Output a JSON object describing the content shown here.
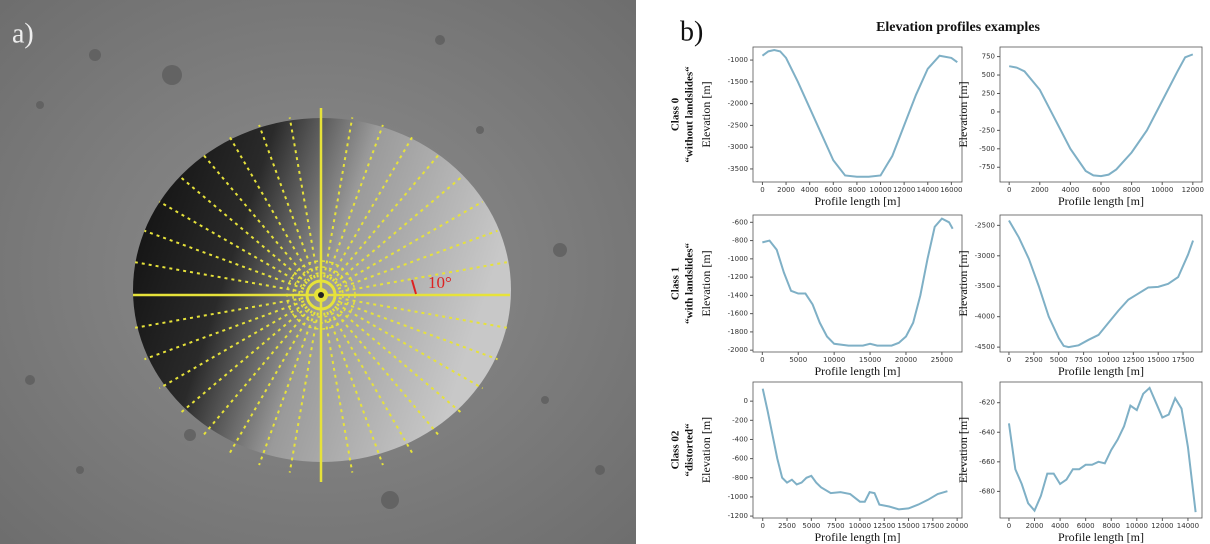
{
  "figure": {
    "panel_a": "a)",
    "panel_b": "b)",
    "title": "Elevation profiles examples",
    "angle": "10°",
    "rows": [
      {
        "class": "Class 0",
        "desc": "“without landslides“"
      },
      {
        "class": "Class 1",
        "desc": "“with landslides“"
      },
      {
        "class": "Class 02",
        "desc": "“distorted“"
      }
    ]
  },
  "chart_data": [
    {
      "type": "line",
      "xlabel": "Profile length [m]",
      "ylabel": "Elevation [m]",
      "color": "#7fb0c6",
      "x": [
        0,
        500,
        1000,
        1500,
        2000,
        3000,
        4000,
        5000,
        6000,
        7000,
        8000,
        9000,
        10000,
        11000,
        12000,
        13000,
        14000,
        15000,
        16000,
        16500
      ],
      "values": [
        -900,
        -800,
        -770,
        -800,
        -950,
        -1500,
        -2100,
        -2700,
        -3300,
        -3650,
        -3680,
        -3680,
        -3650,
        -3200,
        -2500,
        -1800,
        -1200,
        -900,
        -950,
        -1050
      ],
      "xlim": [
        -800,
        16900
      ],
      "ylim": [
        -3800,
        -700
      ],
      "xticks": [
        0,
        2000,
        4000,
        6000,
        8000,
        10000,
        12000,
        14000,
        16000
      ],
      "yticks": [
        -1000,
        -1500,
        -2000,
        -2500,
        -3000,
        -3500
      ]
    },
    {
      "type": "line",
      "xlabel": "Profile length [m]",
      "ylabel": "Elevation [m]",
      "color": "#7fb0c6",
      "x": [
        0,
        500,
        1000,
        2000,
        3000,
        4000,
        5000,
        5500,
        6000,
        6500,
        7000,
        8000,
        9000,
        10000,
        11000,
        11500,
        12000
      ],
      "values": [
        620,
        600,
        550,
        300,
        -100,
        -500,
        -800,
        -860,
        -870,
        -850,
        -780,
        -550,
        -250,
        150,
        550,
        740,
        780
      ],
      "xlim": [
        -600,
        12600
      ],
      "ylim": [
        -950,
        880
      ],
      "xticks": [
        0,
        2000,
        4000,
        6000,
        8000,
        10000,
        12000
      ],
      "yticks": [
        750,
        500,
        250,
        0,
        -250,
        -500,
        -750
      ]
    },
    {
      "type": "line",
      "xlabel": "Profile length [m]",
      "ylabel": "Elevation [m]",
      "color": "#7fb0c6",
      "x": [
        0,
        1000,
        2000,
        3000,
        4000,
        5000,
        6000,
        7000,
        8000,
        9000,
        10000,
        12000,
        14000,
        15000,
        16000,
        18000,
        19000,
        20000,
        21000,
        22000,
        23000,
        24000,
        25000,
        26000,
        26500
      ],
      "values": [
        -820,
        -800,
        -900,
        -1150,
        -1350,
        -1380,
        -1380,
        -1500,
        -1700,
        -1850,
        -1930,
        -1950,
        -1950,
        -1930,
        -1950,
        -1950,
        -1920,
        -1850,
        -1700,
        -1400,
        -1000,
        -650,
        -560,
        -600,
        -670
      ],
      "xlim": [
        -1300,
        27800
      ],
      "ylim": [
        -2020,
        -520
      ],
      "xticks": [
        0,
        5000,
        10000,
        15000,
        20000,
        25000
      ],
      "yticks": [
        -600,
        -800,
        -1000,
        -1200,
        -1400,
        -1600,
        -1800,
        -2000
      ]
    },
    {
      "type": "line",
      "xlabel": "Profile length [m]",
      "ylabel": "Elevation [m]",
      "color": "#7fb0c6",
      "x": [
        0,
        1000,
        2000,
        3000,
        4000,
        5000,
        5500,
        6000,
        7000,
        8000,
        9000,
        10000,
        11000,
        12000,
        13000,
        14000,
        15000,
        16000,
        17000,
        18000,
        18500
      ],
      "values": [
        -2420,
        -2700,
        -3050,
        -3500,
        -4000,
        -4350,
        -4480,
        -4500,
        -4470,
        -4380,
        -4300,
        -4100,
        -3900,
        -3720,
        -3620,
        -3520,
        -3510,
        -3460,
        -3350,
        -2980,
        -2750
      ],
      "xlim": [
        -900,
        19400
      ],
      "ylim": [
        -4580,
        -2330
      ],
      "xticks": [
        0,
        2500,
        5000,
        7500,
        10000,
        12500,
        15000,
        17500
      ],
      "yticks": [
        -2500,
        -3000,
        -3500,
        -4000,
        -4500
      ]
    },
    {
      "type": "line",
      "xlabel": "Profile length [m]",
      "ylabel": "Elevation [m]",
      "color": "#7fb0c6",
      "x": [
        0,
        500,
        1000,
        1500,
        2000,
        2500,
        3000,
        3500,
        4000,
        4500,
        5000,
        5500,
        6000,
        7000,
        8000,
        9000,
        10000,
        10500,
        11000,
        11500,
        12000,
        13000,
        14000,
        15000,
        16000,
        17000,
        18000,
        19000
      ],
      "values": [
        130,
        -100,
        -350,
        -600,
        -800,
        -850,
        -820,
        -870,
        -850,
        -800,
        -780,
        -850,
        -900,
        -960,
        -950,
        -970,
        -1050,
        -1050,
        -950,
        -960,
        -1080,
        -1100,
        -1130,
        -1120,
        -1080,
        -1030,
        -970,
        -940
      ],
      "xlim": [
        -1000,
        20500
      ],
      "ylim": [
        -1220,
        200
      ],
      "xticks": [
        0,
        2500,
        5000,
        7500,
        10000,
        12500,
        15000,
        17500,
        20000
      ],
      "yticks": [
        0,
        -200,
        -400,
        -600,
        -800,
        -1000,
        -1200
      ]
    },
    {
      "type": "line",
      "xlabel": "Profile length [m]",
      "ylabel": "Elevation [m]",
      "color": "#7fb0c6",
      "x": [
        0,
        500,
        1000,
        1500,
        2000,
        2500,
        3000,
        3500,
        4000,
        4500,
        5000,
        5500,
        6000,
        6500,
        7000,
        7500,
        8000,
        8500,
        9000,
        9500,
        10000,
        10500,
        11000,
        11500,
        12000,
        12500,
        13000,
        13500,
        14000,
        14600
      ],
      "values": [
        -634,
        -665,
        -675,
        -688,
        -693,
        -683,
        -668,
        -668,
        -675,
        -672,
        -665,
        -665,
        -662,
        -662,
        -660,
        -661,
        -652,
        -645,
        -636,
        -622,
        -625,
        -614,
        -610,
        -620,
        -630,
        -628,
        -617,
        -624,
        -650,
        -694
      ],
      "xlim": [
        -700,
        15100
      ],
      "ylim": [
        -698,
        -606
      ],
      "xticks": [
        0,
        2000,
        4000,
        6000,
        8000,
        10000,
        12000,
        14000
      ],
      "yticks": [
        -620,
        -640,
        -660,
        -680
      ]
    }
  ]
}
